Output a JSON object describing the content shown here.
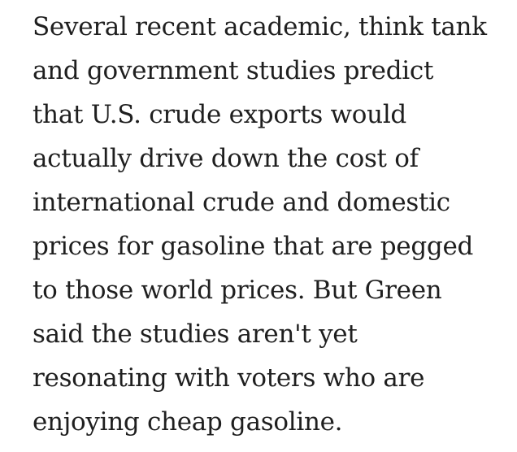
{
  "article": {
    "lines": [
      "Several recent academic, think tank",
      "and government studies predict",
      "that U.S. crude exports would",
      "actually drive down the cost of",
      "international crude and domestic",
      "prices for gasoline that are pegged",
      "to those world prices. But Green",
      "said the studies aren't yet",
      "resonating with voters who are",
      "enjoying cheap gasoline."
    ]
  }
}
